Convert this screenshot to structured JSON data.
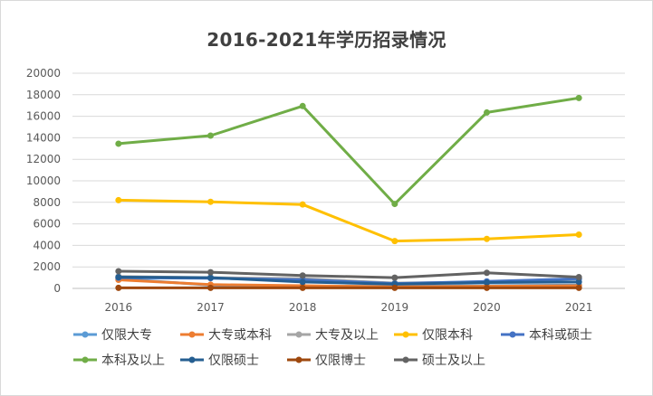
{
  "chart_data": {
    "type": "line",
    "title": "2016-2021年学历招录情况",
    "xlabel": "",
    "ylabel": "",
    "categories": [
      "2016",
      "2017",
      "2018",
      "2019",
      "2020",
      "2021"
    ],
    "ylim": [
      0,
      20000
    ],
    "yticks": [
      0,
      2000,
      4000,
      6000,
      8000,
      10000,
      12000,
      14000,
      16000,
      18000,
      20000
    ],
    "grid": true,
    "legend_position": "bottom",
    "series": [
      {
        "name": "仅限大专",
        "color": "#5B9BD5",
        "values": [
          900,
          300,
          200,
          200,
          250,
          300
        ]
      },
      {
        "name": "大专或本科",
        "color": "#ED7D31",
        "values": [
          800,
          350,
          250,
          150,
          200,
          250
        ]
      },
      {
        "name": "大专及以上",
        "color": "#A5A5A5",
        "values": [
          1100,
          1000,
          900,
          500,
          600,
          900
        ]
      },
      {
        "name": "仅限本科",
        "color": "#FFC000",
        "values": [
          8200,
          8050,
          7800,
          4400,
          4600,
          5000
        ]
      },
      {
        "name": "本科或硕士",
        "color": "#4472C4",
        "values": [
          1000,
          950,
          800,
          450,
          650,
          900
        ]
      },
      {
        "name": "本科及以上",
        "color": "#70AD47",
        "values": [
          13450,
          14200,
          16950,
          7850,
          16350,
          17700
        ]
      },
      {
        "name": "仅限硕士",
        "color": "#255E91",
        "values": [
          1050,
          1000,
          600,
          400,
          550,
          600
        ]
      },
      {
        "name": "仅限博士",
        "color": "#9E480E",
        "values": [
          50,
          50,
          50,
          50,
          50,
          50
        ]
      },
      {
        "name": "硕士及以上",
        "color": "#636363",
        "values": [
          1600,
          1500,
          1200,
          1000,
          1450,
          1050
        ]
      }
    ]
  }
}
